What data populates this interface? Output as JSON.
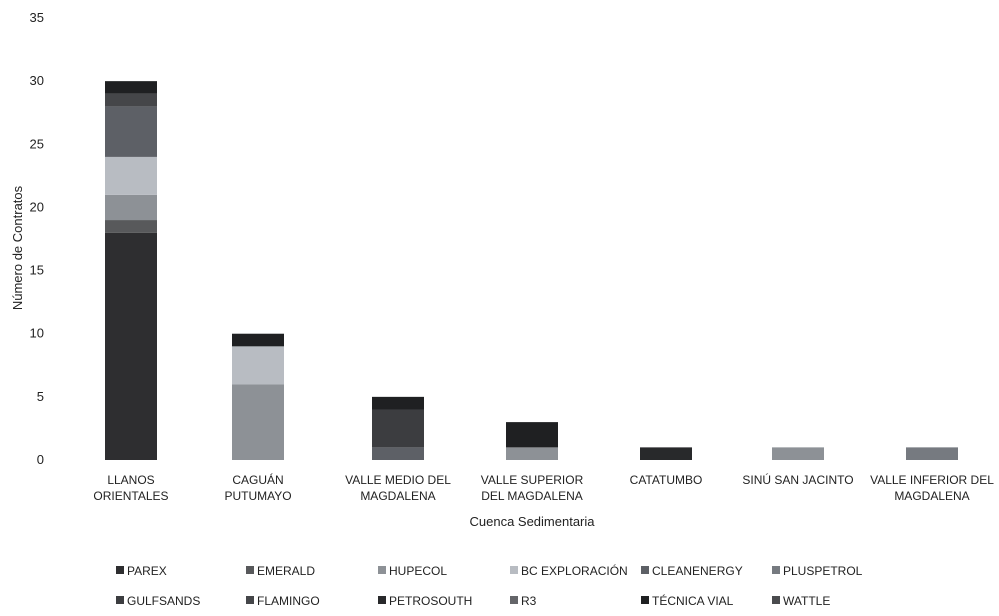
{
  "chart_data": {
    "type": "bar",
    "stacked": true,
    "title": "",
    "xlabel": "Cuenca Sedimentaria",
    "ylabel": "Número de Contratos",
    "ylim": [
      0,
      35
    ],
    "yticks": [
      0,
      5,
      10,
      15,
      20,
      25,
      30,
      35
    ],
    "grid": false,
    "legend_position": "bottom",
    "categories": [
      [
        "LLANOS",
        "ORIENTALES"
      ],
      [
        "CAGUÁN",
        "PUTUMAYO"
      ],
      [
        "VALLE MEDIO DEL",
        "MAGDALENA"
      ],
      [
        "VALLE SUPERIOR",
        "DEL MAGDALENA"
      ],
      [
        "CATATUMBO"
      ],
      [
        "SINÚ SAN JACINTO"
      ],
      [
        "VALLE INFERIOR DEL",
        "MAGDALENA"
      ]
    ],
    "series": [
      {
        "name": "PAREX",
        "color": "#2e2e30",
        "values": [
          18,
          0,
          0,
          0,
          0,
          0,
          0
        ]
      },
      {
        "name": "EMERALD",
        "color": "#58595b",
        "values": [
          1,
          0,
          0,
          0,
          0,
          0,
          0
        ]
      },
      {
        "name": "HUPECOL",
        "color": "#8d9196",
        "values": [
          2,
          6,
          0,
          1,
          0,
          1,
          0
        ]
      },
      {
        "name": "BC EXPLORACIÓN",
        "color": "#b8bcc2",
        "values": [
          3,
          3,
          0,
          0,
          0,
          0,
          0
        ]
      },
      {
        "name": "CLEANENERGY",
        "color": "#5d6066",
        "values": [
          4,
          0,
          1,
          0,
          0,
          0,
          0
        ]
      },
      {
        "name": "PLUSPETROL",
        "color": "#767a80",
        "values": [
          0,
          0,
          0,
          0,
          0,
          0,
          1
        ]
      },
      {
        "name": "GULFSANDS",
        "color": "#3c3d40",
        "values": [
          0,
          0,
          3,
          0,
          0,
          0,
          0
        ]
      },
      {
        "name": "FLAMINGO",
        "color": "#454649",
        "values": [
          1,
          0,
          0,
          0,
          0,
          0,
          0
        ]
      },
      {
        "name": "PETROSOUTH",
        "color": "#28292b",
        "values": [
          0,
          0,
          0,
          0,
          1,
          0,
          0
        ]
      },
      {
        "name": "R3",
        "color": "#646569",
        "values": [
          0,
          0,
          0,
          0,
          0,
          0,
          0
        ]
      },
      {
        "name": "TÉCNICA VIAL",
        "color": "#1f2022",
        "values": [
          1,
          1,
          1,
          2,
          0,
          0,
          0
        ]
      },
      {
        "name": "WATTLE",
        "color": "#4a4b4e",
        "values": [
          0,
          0,
          0,
          0,
          0,
          0,
          0
        ]
      }
    ]
  }
}
